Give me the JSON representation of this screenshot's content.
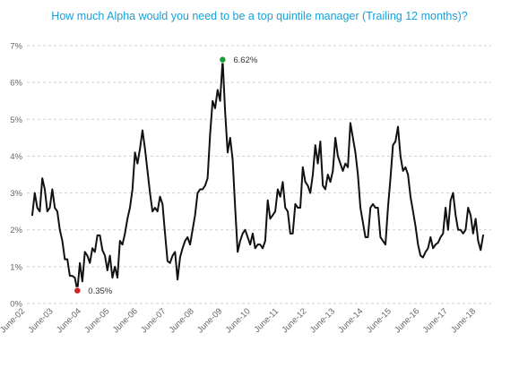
{
  "chart_data": {
    "type": "line",
    "title": "How much Alpha would you need to be a top quintile manager (Trailing 12 months)?",
    "xlabel": "",
    "ylabel": "",
    "ylim": [
      0,
      7
    ],
    "y_ticks": [
      "0%",
      "1%",
      "2%",
      "3%",
      "4%",
      "5%",
      "6%",
      "7%"
    ],
    "x_ticks": [
      "June-02",
      "June-03",
      "June-04",
      "June-05",
      "June-06",
      "June-07",
      "June-08",
      "June-09",
      "June-10",
      "June-11",
      "June-12",
      "June-13",
      "June-14",
      "June-15",
      "June-16",
      "June-17",
      "June-18"
    ],
    "grid": true,
    "legend": "none",
    "line_color": "#111111",
    "series": [
      {
        "values": [
          2.4,
          3.0,
          2.6,
          2.5,
          3.4,
          3.1,
          2.5,
          2.6,
          3.1,
          2.6,
          2.5,
          2.0,
          1.7,
          1.2,
          1.2,
          0.75,
          0.75,
          0.7,
          0.35,
          1.1,
          0.6,
          1.4,
          1.3,
          1.1,
          1.5,
          1.4,
          1.85,
          1.85,
          1.45,
          1.3,
          0.9,
          1.3,
          0.7,
          1.0,
          0.7,
          1.7,
          1.6,
          1.9,
          2.3,
          2.6,
          3.1,
          4.1,
          3.8,
          4.2,
          4.7,
          4.2,
          3.6,
          3.0,
          2.5,
          2.6,
          2.5,
          2.9,
          2.7,
          1.9,
          1.15,
          1.1,
          1.3,
          1.4,
          0.65,
          1.25,
          1.5,
          1.7,
          1.8,
          1.6,
          2.0,
          2.4,
          3.0,
          3.1,
          3.1,
          3.2,
          3.4,
          4.6,
          5.5,
          5.3,
          5.8,
          5.5,
          6.62,
          5.2,
          4.1,
          4.5,
          3.9,
          2.6,
          1.4,
          1.7,
          1.9,
          2.0,
          1.8,
          1.6,
          1.9,
          1.5,
          1.6,
          1.6,
          1.5,
          1.7,
          2.8,
          2.3,
          2.4,
          2.5,
          3.1,
          2.9,
          3.3,
          2.6,
          2.5,
          1.9,
          1.9,
          2.7,
          2.6,
          2.6,
          3.7,
          3.3,
          3.2,
          3.0,
          3.5,
          4.3,
          3.8,
          4.4,
          3.2,
          3.1,
          3.5,
          3.3,
          3.6,
          4.5,
          4.0,
          3.8,
          3.6,
          3.8,
          3.7,
          4.9,
          4.5,
          4.1,
          3.5,
          2.6,
          2.2,
          1.8,
          1.8,
          2.6,
          2.7,
          2.6,
          2.6,
          1.8,
          1.7,
          1.6,
          2.6,
          3.4,
          4.3,
          4.4,
          4.8,
          4.0,
          3.6,
          3.7,
          3.5,
          2.9,
          2.5,
          2.1,
          1.6,
          1.3,
          1.25,
          1.4,
          1.5,
          1.8,
          1.5,
          1.6,
          1.65,
          1.8,
          1.9,
          2.6,
          2.0,
          2.8,
          3.0,
          2.4,
          2.0,
          2.0,
          1.9,
          2.0,
          2.6,
          2.4,
          1.9,
          2.3,
          1.7,
          1.45,
          1.85
        ]
      }
    ],
    "annotations": [
      {
        "label": "6.62%",
        "value": 6.62,
        "index": 76,
        "marker_color": "#1a9a3a"
      },
      {
        "label": "0.35%",
        "value": 0.35,
        "index": 18,
        "marker_color": "#d41f1f"
      }
    ]
  }
}
